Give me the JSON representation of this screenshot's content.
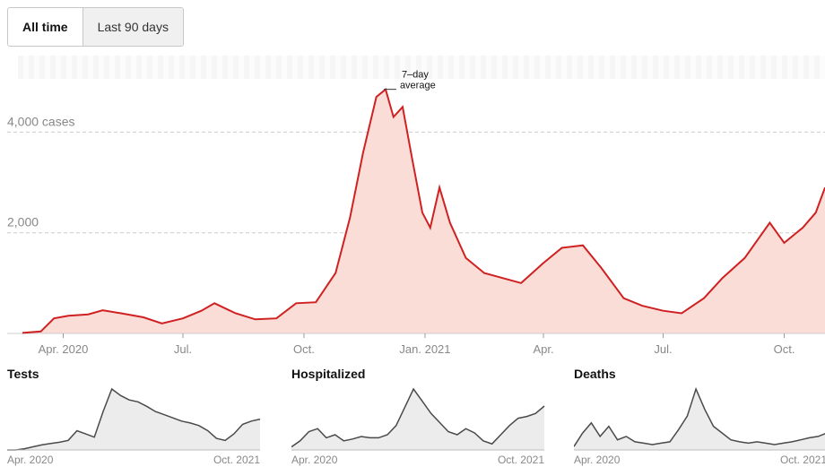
{
  "toggle": {
    "all_time": "All time",
    "last_90": "Last 90 days"
  },
  "colors": {
    "cases_line": "#cf2121",
    "cases_fill": "#fbddd8",
    "mini_line": "#4a4a4a",
    "mini_fill": "#ececec",
    "grid": "#cccccc"
  },
  "chart_data": [
    {
      "type": "area",
      "series": [
        {
          "name": "7-day average",
          "values": [
            [
              "2020-03-01",
              10
            ],
            [
              "2020-03-15",
              40
            ],
            [
              "2020-03-25",
              300
            ],
            [
              "2020-04-05",
              350
            ],
            [
              "2020-04-20",
              380
            ],
            [
              "2020-05-01",
              460
            ],
            [
              "2020-05-15",
              400
            ],
            [
              "2020-06-01",
              320
            ],
            [
              "2020-06-15",
              200
            ],
            [
              "2020-07-01",
              300
            ],
            [
              "2020-07-15",
              450
            ],
            [
              "2020-07-25",
              600
            ],
            [
              "2020-08-10",
              400
            ],
            [
              "2020-08-25",
              280
            ],
            [
              "2020-09-10",
              300
            ],
            [
              "2020-09-25",
              600
            ],
            [
              "2020-10-10",
              620
            ],
            [
              "2020-10-25",
              1200
            ],
            [
              "2020-11-05",
              2300
            ],
            [
              "2020-11-15",
              3600
            ],
            [
              "2020-11-25",
              4700
            ],
            [
              "2020-12-02",
              4850
            ],
            [
              "2020-12-08",
              4300
            ],
            [
              "2020-12-15",
              4500
            ],
            [
              "2020-12-22",
              3500
            ],
            [
              "2020-12-30",
              2400
            ],
            [
              "2021-01-05",
              2100
            ],
            [
              "2021-01-12",
              2900
            ],
            [
              "2021-01-20",
              2200
            ],
            [
              "2021-02-01",
              1500
            ],
            [
              "2021-02-15",
              1200
            ],
            [
              "2021-03-01",
              1100
            ],
            [
              "2021-03-15",
              1000
            ],
            [
              "2021-04-01",
              1400
            ],
            [
              "2021-04-15",
              1700
            ],
            [
              "2021-05-01",
              1750
            ],
            [
              "2021-05-15",
              1300
            ],
            [
              "2021-06-01",
              700
            ],
            [
              "2021-06-15",
              550
            ],
            [
              "2021-07-01",
              450
            ],
            [
              "2021-07-15",
              400
            ],
            [
              "2021-08-01",
              700
            ],
            [
              "2021-08-15",
              1100
            ],
            [
              "2021-09-01",
              1500
            ],
            [
              "2021-09-20",
              2200
            ],
            [
              "2021-10-01",
              1800
            ],
            [
              "2021-10-15",
              2100
            ],
            [
              "2021-10-25",
              2400
            ],
            [
              "2021-11-01",
              2900
            ]
          ]
        }
      ],
      "annotation": "7–day\naverage",
      "y_ticks": [
        {
          "value": 2000,
          "label": "2,000"
        },
        {
          "value": 4000,
          "label": "4,000 cases"
        }
      ],
      "x_ticks": [
        {
          "date": "2020-04-01",
          "label": "Apr. 2020"
        },
        {
          "date": "2020-07-01",
          "label": "Jul."
        },
        {
          "date": "2020-10-01",
          "label": "Oct."
        },
        {
          "date": "2021-01-01",
          "label": "Jan. 2021"
        },
        {
          "date": "2021-04-01",
          "label": "Apr."
        },
        {
          "date": "2021-07-01",
          "label": "Jul."
        },
        {
          "date": "2021-10-01",
          "label": "Oct."
        }
      ],
      "xlim": [
        "2020-03-01",
        "2021-11-01"
      ],
      "ylim": [
        0,
        5200
      ],
      "grid": true
    },
    {
      "type": "area",
      "title": "Tests",
      "values": [
        0,
        0,
        2,
        5,
        8,
        10,
        12,
        15,
        30,
        25,
        20,
        60,
        95,
        85,
        78,
        75,
        68,
        60,
        55,
        50,
        45,
        42,
        38,
        30,
        18,
        15,
        25,
        40,
        45,
        48
      ],
      "x_ticks": [
        "Apr. 2020",
        "Oct. 2021"
      ]
    },
    {
      "type": "area",
      "title": "Hospitalized",
      "values": [
        5,
        15,
        30,
        35,
        20,
        25,
        15,
        18,
        22,
        20,
        20,
        25,
        40,
        70,
        100,
        80,
        60,
        45,
        30,
        25,
        35,
        28,
        15,
        10,
        25,
        40,
        52,
        55,
        60,
        72
      ],
      "x_ticks": [
        "Apr. 2020",
        "Oct. 2021"
      ]
    },
    {
      "type": "area",
      "title": "Deaths",
      "values": [
        5,
        25,
        40,
        20,
        35,
        15,
        20,
        12,
        10,
        8,
        10,
        12,
        30,
        50,
        90,
        60,
        35,
        25,
        15,
        12,
        10,
        12,
        10,
        8,
        10,
        12,
        15,
        18,
        20,
        25
      ],
      "x_ticks": [
        "Apr. 2020",
        "Oct. 2021"
      ]
    }
  ]
}
